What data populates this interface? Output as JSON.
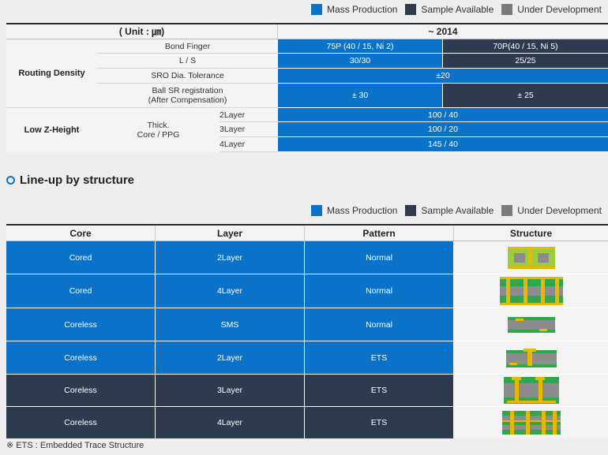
{
  "legend": {
    "mass": "Mass Production",
    "sample": "Sample Available",
    "dev": "Under Development"
  },
  "spec_table": {
    "unit_header": "( Unit : ㎛)",
    "year_header": "~ 2014",
    "routing_density": "Routing Density",
    "low_z": "Low Z-Height",
    "thick_label": "Thick.\nCore / PPG",
    "rows": [
      {
        "label": "Bond Finger",
        "mass": "75P (40 / 15, Ni 2)",
        "sample": "70P(40 / 15, Ni 5)"
      },
      {
        "label": "L / S",
        "mass": "30/30",
        "sample": "25/25"
      },
      {
        "label": "SRO Dia. Tolerance",
        "mass": "±20"
      },
      {
        "label": "Ball SR registration\n(After Compensation)",
        "mass": "± 30",
        "sample": "± 25"
      },
      {
        "label": "2Layer",
        "mass": "100 / 40"
      },
      {
        "label": "3Layer",
        "mass": "100 / 20"
      },
      {
        "label": "4Layer",
        "mass": "145 / 40"
      }
    ]
  },
  "section_title": "Line-up by structure",
  "lineup": {
    "headers": [
      "Core",
      "Layer",
      "Pattern",
      "Structure"
    ],
    "rows": [
      {
        "core": "Cored",
        "layer": "2Layer",
        "pattern": "Normal",
        "status": "mass"
      },
      {
        "core": "Cored",
        "layer": "4Layer",
        "pattern": "Normal",
        "status": "mass"
      },
      {
        "core": "Coreless",
        "layer": "SMS",
        "pattern": "Normal",
        "status": "mass"
      },
      {
        "core": "Coreless",
        "layer": "2Layer",
        "pattern": "ETS",
        "status": "mass"
      },
      {
        "core": "Coreless",
        "layer": "3Layer",
        "pattern": "ETS",
        "status": "sample"
      },
      {
        "core": "Coreless",
        "layer": "4Layer",
        "pattern": "ETS",
        "status": "sample"
      }
    ]
  },
  "footnote": "※ ETS : Embedded Trace Structure",
  "colors": {
    "mass": "#0a72c9",
    "sample": "#2e3a4e",
    "dev": "#7b7b7b"
  }
}
